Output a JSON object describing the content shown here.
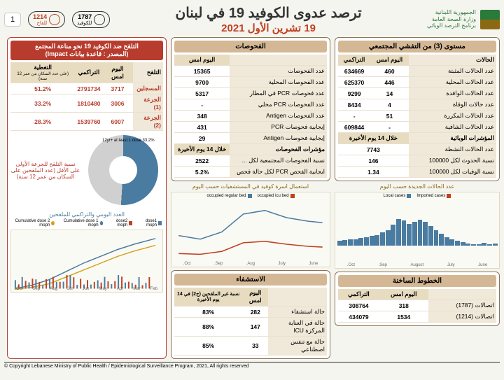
{
  "header": {
    "gov_line1": "الجمهورية اللبنانية",
    "gov_line2": "وزارة الصحة العامة",
    "gov_line3": "برنامج الترصد الوبائي",
    "main_title": "ترصد عدوى الكوفيد 19 في لبنان",
    "date": "19 تشرين الأول 2021",
    "hotline1_num": "1787",
    "hotline1_label": "للكوفيد",
    "hotline2_num": "1214",
    "hotline2_label": "للقاح",
    "page": "1"
  },
  "community": {
    "title": "مستوى (3) من التفشي المجتمعي",
    "h1": "الحالات",
    "h2": "اليوم امس",
    "h3": "التراكمي",
    "r1_label": "عدد الحالات المثبتة",
    "r1_day": "460",
    "r1_cum": "634669",
    "r2_label": "عدد الحالات المحلية",
    "r2_day": "446",
    "r2_cum": "625370",
    "r3_label": "عدد الحالات الوافدة",
    "r3_day": "14",
    "r3_cum": "9299",
    "r4_label": "عدد حالات الوفاة",
    "r4_day": "4",
    "r4_cum": "8434",
    "r5_label": "عدد الحالات المكررة",
    "r5_day": "51",
    "r5_cum": "-",
    "r6_label": "عدد الحالات الشافية",
    "r6_day": "-",
    "r6_cum": "609844",
    "h4": "المؤشرات الوبائية",
    "h5": "خلال 14 يوم الأخيرة",
    "r7_label": "عدد الحالات النشطة",
    "r7_val": "7743",
    "r8_label": "نسبة الحدوث لكل 100000",
    "r8_val": "146",
    "r9_label": "نسبة الوفيات لكل 100000",
    "r9_val": "1.34"
  },
  "cases_chart": {
    "title": "عدد الحالات الجديدة حسب اليوم",
    "leg1": "Imported cases",
    "leg2": "Local cases",
    "months": [
      "June",
      "July",
      "August",
      "Sep.",
      "Oct."
    ],
    "y_max": "3000",
    "bars": [
      5,
      4,
      6,
      4,
      3,
      5,
      8,
      12,
      15,
      20,
      28,
      35,
      45,
      55,
      60,
      55,
      50,
      58,
      62,
      48,
      35,
      30,
      25,
      22,
      20,
      18,
      15,
      14,
      13,
      12
    ]
  },
  "hotlines": {
    "title": "الخطوط الساخنة",
    "h1": "",
    "h2": "اليوم امس",
    "h3": "التراكمي",
    "r1_label": "اتصالات (1787)",
    "r1_day": "318",
    "r1_cum": "308764",
    "r2_label": "اتصالات (1214)",
    "r2_day": "1534",
    "r2_cum": "434079"
  },
  "tests": {
    "title": "الفحوصات",
    "h1": "",
    "h2": "اليوم امس",
    "r1_label": "عدد الفحوصات",
    "r1_val": "15365",
    "r2_label": "عدد الفحوصات المحلية",
    "r2_val": "9700",
    "r3_label": "عدد فحوصات PCR في المطار",
    "r3_val": "5317",
    "r4_label": "عدد الفحوصات PCR محلي",
    "r4_val": "-",
    "r5_label": "عدد الفحوصات Antigen",
    "r5_val": "348",
    "r6_label": "إيجابية فحوصات PCR",
    "r6_val": "431",
    "r7_label": "إيجابية فحوصات Antigen",
    "r7_val": "29",
    "h3": "مؤشرات الفحوصات",
    "h4": "خلال 14 يوم الأخيرة",
    "r8_label": "نسبة الفحوصات المجتمعية لكل ...",
    "r8_val": "2522",
    "r9_label": "ايجابية الفحص PCR لكل حالة فحص",
    "r9_val": "5.2%"
  },
  "icu_chart": {
    "title": "استعمال اسرة كوفيد في المستشفيات حسب اليوم",
    "leg1": "occupied icu bed",
    "leg2": "occupied regular bed",
    "months": [
      "June",
      "July",
      "Aug.",
      "Sep.",
      "Oct."
    ],
    "y_label": "number of occupied to beds"
  },
  "hospital": {
    "title": "الاستشفاء",
    "h1": "",
    "h2": "اليوم امس",
    "h3": "نسبة غير الملقحين (ج2) في 14 يوم الأخيرة",
    "r1_label": "حالة استشفاء",
    "r1_day": "282",
    "r1_pct": "83%",
    "r2_label": "حالة في العناية المركزة ICU",
    "r2_day": "147",
    "r2_pct": "88%",
    "r3_label": "حالة مع تنفس اصطناعي",
    "r3_day": "33",
    "r3_pct": "85%"
  },
  "vax": {
    "title1": "التلقح ضد الكوفيد 19 نحو مناعة المجتمع",
    "title2": "(المصدر : قاعدة بيانات Impact)",
    "h1": "التلقح",
    "h2": "اليوم امس",
    "h3": "التراكمي",
    "h4": "التغطية",
    "h4_sub": "(على عدد السكان من عمر 12 سنة)",
    "r1_label": "المسجلين",
    "r1_day": "3717",
    "r1_cum": "2791734",
    "r1_pct": "51.2%",
    "r2_label": "الجرعة (1)",
    "r2_day": "3006",
    "r2_cum": "1810480",
    "r2_pct": "33.2%",
    "r3_label": "الجرعة (2)",
    "r3_day": "6007",
    "r3_cum": "1539760",
    "r3_pct": "28.3%",
    "donut_label1": "12yr+ at least 1 dose 33.2%",
    "donut_caption": "نسبة التلقح للجرعة الأولى على الأقل (عدد الملقحين على السكان من عمر 12 سنة)"
  },
  "vax_chart": {
    "title": "العدد اليومي والتراكمي للملقحين",
    "leg1": "dose1 moph",
    "leg2": "dose2 moph",
    "leg3": "Cumulative dose 1 moph",
    "leg4": "Cumulative dose 2 moph",
    "months": [
      "Feb",
      "Mar",
      "Apr",
      "May",
      "Jun",
      "Jul",
      "Aug",
      "Sep",
      "Oct"
    ]
  },
  "footer": "© Copyright Lebanese Ministry of Public Health / Epidemiological Surveillance Program, 2021, All rights reserved"
}
